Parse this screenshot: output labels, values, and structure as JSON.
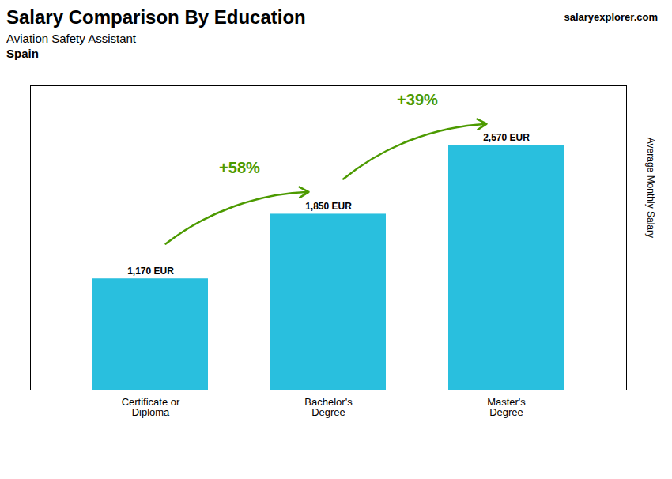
{
  "chart_data": {
    "type": "bar",
    "title": "Salary Comparison By Education",
    "subtitle": [
      "Aviation Safety Assistant",
      "Spain"
    ],
    "source": "salaryexplorer.com",
    "categories": [
      "Certificate or\nDiploma",
      "Bachelor's\nDegree",
      "Master's\nDegree"
    ],
    "values": [
      1170,
      1850,
      2570
    ],
    "value_labels": [
      "1,170 EUR",
      "1,850 EUR",
      "2,570 EUR"
    ],
    "data_labels": true,
    "annotations": [
      "+58%",
      "+39%"
    ],
    "ylabel": "Average Monthly Salary",
    "ylim": [
      0,
      3200
    ],
    "tick_labels": "x",
    "grid": false,
    "color": "#29bfde"
  }
}
